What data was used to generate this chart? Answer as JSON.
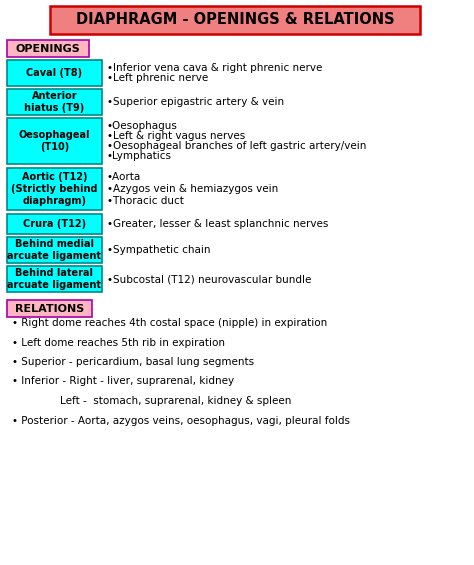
{
  "title": "DIAPHRAGM - OPENINGS & RELATIONS",
  "title_bg": "#F08080",
  "title_border": "#CC0000",
  "openings_label": "OPENINGS",
  "openings_label_bg": "#FFB6C1",
  "openings_label_border": "#AA00AA",
  "relations_label": "RELATIONS",
  "relations_label_bg": "#FFB6C1",
  "relations_label_border": "#AA00AA",
  "box_bg": "#00FFFF",
  "box_border": "#008888",
  "bg_color": "#FFFFFF",
  "font_color": "#000000",
  "rows": [
    {
      "label": "Caval (T8)",
      "content": [
        "Inferior vena cava & right phrenic nerve",
        "Left phrenic nerve"
      ],
      "label_lines": 1
    },
    {
      "label": "Anterior\nhiatus (T9)",
      "content": [
        "Superior epigastric artery & vein"
      ],
      "label_lines": 2
    },
    {
      "label": "Oesophageal\n(T10)",
      "content": [
        "Oesophagus",
        "Left & right vagus nerves",
        "Oesophageal branches of left gastric artery/vein",
        "Lymphatics"
      ],
      "label_lines": 2
    },
    {
      "label": "Aortic (T12)\n(Strictly behind\ndiaphragm)",
      "content": [
        "Aorta",
        "Azygos vein & hemiazygos vein",
        "Thoracic duct"
      ],
      "label_lines": 3
    },
    {
      "label": "Crura (T12)",
      "content": [
        "Greater, lesser & least splanchnic nerves"
      ],
      "label_lines": 1
    },
    {
      "label": "Behind medial\narcuate ligament",
      "content": [
        "Sympathetic chain"
      ],
      "label_lines": 2
    },
    {
      "label": "Behind lateral\narcuate ligament",
      "content": [
        "Subcostal (T12) neurovascular bundle"
      ],
      "label_lines": 2
    }
  ],
  "relations_content": [
    "bullet:Right dome reaches 4th costal space (nipple) in expiration",
    "bullet:Left dome reaches 5th rib in expiration",
    "bullet:Superior - pericardium, basal lung segments",
    "bullet:Inferior - Right - liver, suprarenal, kidney",
    "indent:Left -  stomach, suprarenal, kidney & spleen",
    "bullet:Posterior - Aorta, azygos veins, oesophagus, vagi, pleural folds"
  ]
}
